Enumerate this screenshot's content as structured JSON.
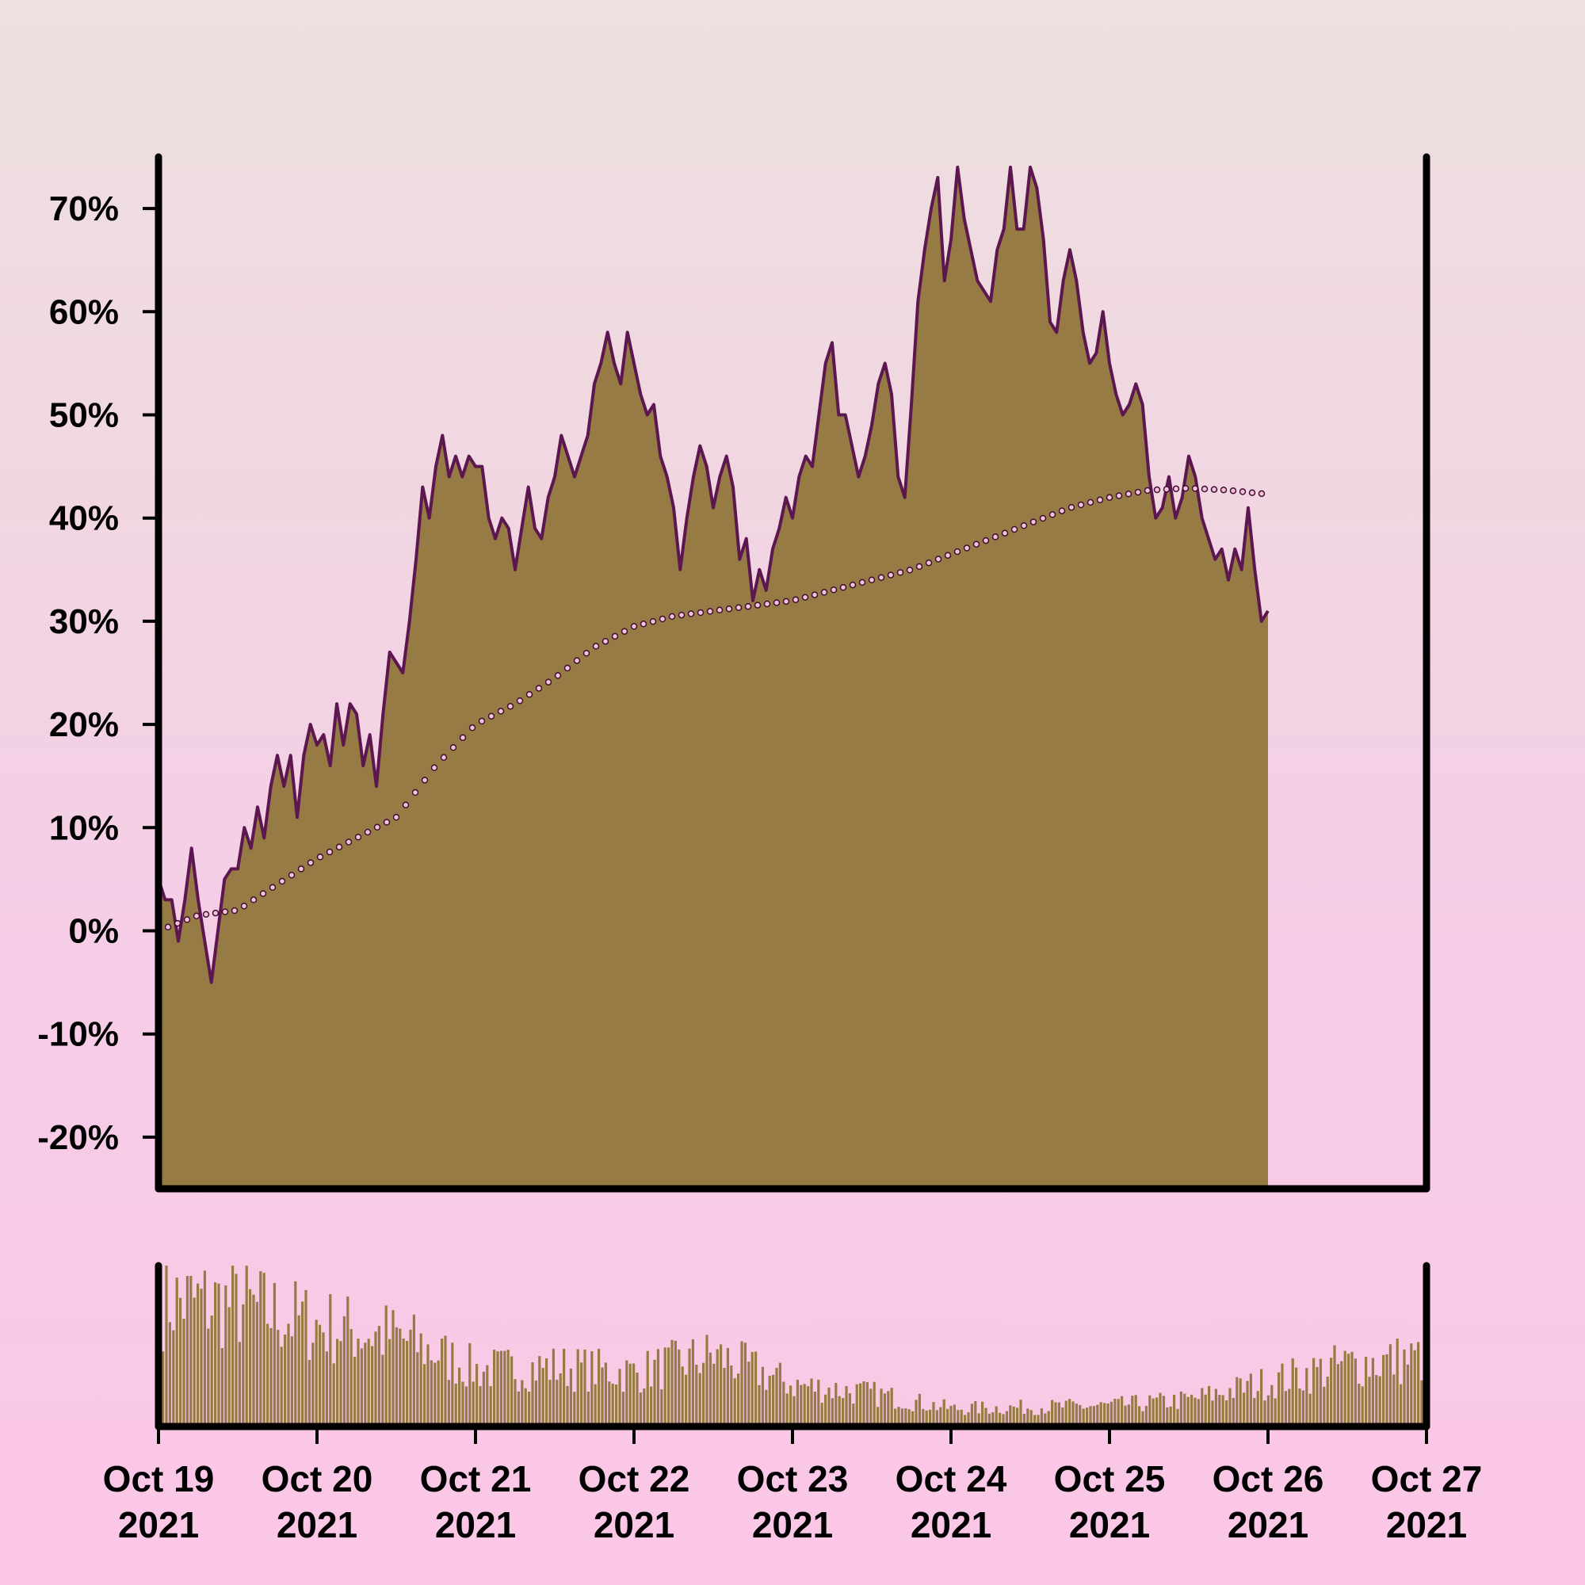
{
  "colors": {
    "area_fill": "#977b44",
    "line": "#5c1650",
    "marker_fill": "#f9c0dc",
    "marker_stroke": "#3a0f30",
    "axis": "#000000"
  },
  "chart_data": [
    {
      "type": "area",
      "title": "",
      "xlabel": "",
      "ylabel": "",
      "x_start": "2021-10-19",
      "x_end": "2021-10-27",
      "ylim": [
        -25,
        75
      ],
      "y_ticks": [
        -20,
        -10,
        0,
        10,
        20,
        30,
        40,
        50,
        60,
        70
      ],
      "y_tick_labels": [
        "-20%",
        "-10%",
        "0%",
        "10%",
        "20%",
        "30%",
        "40%",
        "50%",
        "60%",
        "70%"
      ],
      "x_tick_labels": [
        {
          "month_day": "Oct 19",
          "year": "2021"
        },
        {
          "month_day": "Oct 20",
          "year": "2021"
        },
        {
          "month_day": "Oct 21",
          "year": "2021"
        },
        {
          "month_day": "Oct 22",
          "year": "2021"
        },
        {
          "month_day": "Oct 23",
          "year": "2021"
        },
        {
          "month_day": "Oct 24",
          "year": "2021"
        },
        {
          "month_day": "Oct 25",
          "year": "2021"
        },
        {
          "month_day": "Oct 26",
          "year": "2021"
        },
        {
          "month_day": "Oct 27",
          "year": "2021"
        }
      ],
      "series": [
        {
          "style": "filled area with line",
          "points": [
            [
              "2021-10-19 00:00",
              5
            ],
            [
              "2021-10-19 01:00",
              3
            ],
            [
              "2021-10-19 02:00",
              3
            ],
            [
              "2021-10-19 03:00",
              -1
            ],
            [
              "2021-10-19 04:00",
              3
            ],
            [
              "2021-10-19 05:00",
              8
            ],
            [
              "2021-10-19 06:00",
              3
            ],
            [
              "2021-10-19 07:00",
              -1
            ],
            [
              "2021-10-19 08:00",
              -5
            ],
            [
              "2021-10-19 09:00",
              0
            ],
            [
              "2021-10-19 10:00",
              5
            ],
            [
              "2021-10-19 11:00",
              6
            ],
            [
              "2021-10-19 12:00",
              6
            ],
            [
              "2021-10-19 13:00",
              10
            ],
            [
              "2021-10-19 14:00",
              8
            ],
            [
              "2021-10-19 15:00",
              12
            ],
            [
              "2021-10-19 16:00",
              9
            ],
            [
              "2021-10-19 17:00",
              14
            ],
            [
              "2021-10-19 18:00",
              17
            ],
            [
              "2021-10-19 19:00",
              14
            ],
            [
              "2021-10-19 20:00",
              17
            ],
            [
              "2021-10-19 21:00",
              11
            ],
            [
              "2021-10-19 22:00",
              17
            ],
            [
              "2021-10-19 23:00",
              20
            ],
            [
              "2021-10-20 00:00",
              18
            ],
            [
              "2021-10-20 01:00",
              19
            ],
            [
              "2021-10-20 02:00",
              16
            ],
            [
              "2021-10-20 03:00",
              22
            ],
            [
              "2021-10-20 04:00",
              18
            ],
            [
              "2021-10-20 05:00",
              22
            ],
            [
              "2021-10-20 06:00",
              21
            ],
            [
              "2021-10-20 07:00",
              16
            ],
            [
              "2021-10-20 08:00",
              19
            ],
            [
              "2021-10-20 09:00",
              14
            ],
            [
              "2021-10-20 10:00",
              21
            ],
            [
              "2021-10-20 11:00",
              27
            ],
            [
              "2021-10-20 12:00",
              26
            ],
            [
              "2021-10-20 13:00",
              25
            ],
            [
              "2021-10-20 14:00",
              30
            ],
            [
              "2021-10-20 15:00",
              36
            ],
            [
              "2021-10-20 16:00",
              43
            ],
            [
              "2021-10-20 17:00",
              40
            ],
            [
              "2021-10-20 18:00",
              45
            ],
            [
              "2021-10-20 19:00",
              48
            ],
            [
              "2021-10-20 20:00",
              44
            ],
            [
              "2021-10-20 21:00",
              46
            ],
            [
              "2021-10-20 22:00",
              44
            ],
            [
              "2021-10-20 23:00",
              46
            ],
            [
              "2021-10-21 00:00",
              45
            ],
            [
              "2021-10-21 01:00",
              45
            ],
            [
              "2021-10-21 02:00",
              40
            ],
            [
              "2021-10-21 03:00",
              38
            ],
            [
              "2021-10-21 04:00",
              40
            ],
            [
              "2021-10-21 05:00",
              39
            ],
            [
              "2021-10-21 06:00",
              35
            ],
            [
              "2021-10-21 07:00",
              39
            ],
            [
              "2021-10-21 08:00",
              43
            ],
            [
              "2021-10-21 09:00",
              39
            ],
            [
              "2021-10-21 10:00",
              38
            ],
            [
              "2021-10-21 11:00",
              42
            ],
            [
              "2021-10-21 12:00",
              44
            ],
            [
              "2021-10-21 13:00",
              48
            ],
            [
              "2021-10-21 14:00",
              46
            ],
            [
              "2021-10-21 15:00",
              44
            ],
            [
              "2021-10-21 16:00",
              46
            ],
            [
              "2021-10-21 17:00",
              48
            ],
            [
              "2021-10-21 18:00",
              53
            ],
            [
              "2021-10-21 19:00",
              55
            ],
            [
              "2021-10-21 20:00",
              58
            ],
            [
              "2021-10-21 21:00",
              55
            ],
            [
              "2021-10-21 22:00",
              53
            ],
            [
              "2021-10-21 23:00",
              58
            ],
            [
              "2021-10-22 00:00",
              55
            ],
            [
              "2021-10-22 01:00",
              52
            ],
            [
              "2021-10-22 02:00",
              50
            ],
            [
              "2021-10-22 03:00",
              51
            ],
            [
              "2021-10-22 04:00",
              46
            ],
            [
              "2021-10-22 05:00",
              44
            ],
            [
              "2021-10-22 06:00",
              41
            ],
            [
              "2021-10-22 07:00",
              35
            ],
            [
              "2021-10-22 08:00",
              40
            ],
            [
              "2021-10-22 09:00",
              44
            ],
            [
              "2021-10-22 10:00",
              47
            ],
            [
              "2021-10-22 11:00",
              45
            ],
            [
              "2021-10-22 12:00",
              41
            ],
            [
              "2021-10-22 13:00",
              44
            ],
            [
              "2021-10-22 14:00",
              46
            ],
            [
              "2021-10-22 15:00",
              43
            ],
            [
              "2021-10-22 16:00",
              36
            ],
            [
              "2021-10-22 17:00",
              38
            ],
            [
              "2021-10-22 18:00",
              32
            ],
            [
              "2021-10-22 19:00",
              35
            ],
            [
              "2021-10-22 20:00",
              33
            ],
            [
              "2021-10-22 21:00",
              37
            ],
            [
              "2021-10-22 22:00",
              39
            ],
            [
              "2021-10-22 23:00",
              42
            ],
            [
              "2021-10-23 00:00",
              40
            ],
            [
              "2021-10-23 01:00",
              44
            ],
            [
              "2021-10-23 02:00",
              46
            ],
            [
              "2021-10-23 03:00",
              45
            ],
            [
              "2021-10-23 04:00",
              50
            ],
            [
              "2021-10-23 05:00",
              55
            ],
            [
              "2021-10-23 06:00",
              57
            ],
            [
              "2021-10-23 07:00",
              50
            ],
            [
              "2021-10-23 08:00",
              50
            ],
            [
              "2021-10-23 09:00",
              47
            ],
            [
              "2021-10-23 10:00",
              44
            ],
            [
              "2021-10-23 11:00",
              46
            ],
            [
              "2021-10-23 12:00",
              49
            ],
            [
              "2021-10-23 13:00",
              53
            ],
            [
              "2021-10-23 14:00",
              55
            ],
            [
              "2021-10-23 15:00",
              52
            ],
            [
              "2021-10-23 16:00",
              44
            ],
            [
              "2021-10-23 17:00",
              42
            ],
            [
              "2021-10-23 18:00",
              51
            ],
            [
              "2021-10-23 19:00",
              61
            ],
            [
              "2021-10-23 20:00",
              66
            ],
            [
              "2021-10-23 21:00",
              70
            ],
            [
              "2021-10-23 22:00",
              73
            ],
            [
              "2021-10-23 23:00",
              63
            ],
            [
              "2021-10-24 00:00",
              67
            ],
            [
              "2021-10-24 01:00",
              74
            ],
            [
              "2021-10-24 02:00",
              69
            ],
            [
              "2021-10-24 03:00",
              66
            ],
            [
              "2021-10-24 04:00",
              63
            ],
            [
              "2021-10-24 05:00",
              62
            ],
            [
              "2021-10-24 06:00",
              61
            ],
            [
              "2021-10-24 07:00",
              66
            ],
            [
              "2021-10-24 08:00",
              68
            ],
            [
              "2021-10-24 09:00",
              74
            ],
            [
              "2021-10-24 10:00",
              68
            ],
            [
              "2021-10-24 11:00",
              68
            ],
            [
              "2021-10-24 12:00",
              74
            ],
            [
              "2021-10-24 13:00",
              72
            ],
            [
              "2021-10-24 14:00",
              67
            ],
            [
              "2021-10-24 15:00",
              59
            ],
            [
              "2021-10-24 16:00",
              58
            ],
            [
              "2021-10-24 17:00",
              63
            ],
            [
              "2021-10-24 18:00",
              66
            ],
            [
              "2021-10-24 19:00",
              63
            ],
            [
              "2021-10-24 20:00",
              58
            ],
            [
              "2021-10-24 21:00",
              55
            ],
            [
              "2021-10-24 22:00",
              56
            ],
            [
              "2021-10-24 23:00",
              60
            ],
            [
              "2021-10-25 00:00",
              55
            ],
            [
              "2021-10-25 01:00",
              52
            ],
            [
              "2021-10-25 02:00",
              50
            ],
            [
              "2021-10-25 03:00",
              51
            ],
            [
              "2021-10-25 04:00",
              53
            ],
            [
              "2021-10-25 05:00",
              51
            ],
            [
              "2021-10-25 06:00",
              44
            ],
            [
              "2021-10-25 07:00",
              40
            ],
            [
              "2021-10-25 08:00",
              41
            ],
            [
              "2021-10-25 09:00",
              44
            ],
            [
              "2021-10-25 10:00",
              40
            ],
            [
              "2021-10-25 11:00",
              42
            ],
            [
              "2021-10-25 12:00",
              46
            ],
            [
              "2021-10-25 13:00",
              44
            ],
            [
              "2021-10-25 14:00",
              40
            ],
            [
              "2021-10-25 15:00",
              38
            ],
            [
              "2021-10-25 16:00",
              36
            ],
            [
              "2021-10-25 17:00",
              37
            ],
            [
              "2021-10-25 18:00",
              34
            ],
            [
              "2021-10-25 19:00",
              37
            ],
            [
              "2021-10-25 20:00",
              35
            ],
            [
              "2021-10-25 21:00",
              41
            ],
            [
              "2021-10-25 22:00",
              35
            ],
            [
              "2021-10-25 23:00",
              30
            ],
            [
              "2021-10-26 00:00",
              31
            ]
          ]
        },
        {
          "style": "dotted moving-average line",
          "points": [
            [
              "2021-10-19 00:00",
              0
            ],
            [
              "2021-10-19 06:00",
              1.5
            ],
            [
              "2021-10-19 12:00",
              2
            ],
            [
              "2021-10-19 18:00",
              4.5
            ],
            [
              "2021-10-20 00:00",
              7
            ],
            [
              "2021-10-20 06:00",
              9
            ],
            [
              "2021-10-20 12:00",
              11
            ],
            [
              "2021-10-20 18:00",
              16
            ],
            [
              "2021-10-21 00:00",
              20
            ],
            [
              "2021-10-21 06:00",
              22
            ],
            [
              "2021-10-21 12:00",
              24.5
            ],
            [
              "2021-10-21 18:00",
              27.5
            ],
            [
              "2021-10-22 00:00",
              29.5
            ],
            [
              "2021-10-22 06:00",
              30.5
            ],
            [
              "2021-10-22 12:00",
              31
            ],
            [
              "2021-10-22 18:00",
              31.5
            ],
            [
              "2021-10-23 00:00",
              32
            ],
            [
              "2021-10-23 06:00",
              33
            ],
            [
              "2021-10-23 12:00",
              34
            ],
            [
              "2021-10-23 18:00",
              35
            ],
            [
              "2021-10-24 00:00",
              36.5
            ],
            [
              "2021-10-24 06:00",
              38
            ],
            [
              "2021-10-24 12:00",
              39.5
            ],
            [
              "2021-10-24 18:00",
              41
            ],
            [
              "2021-10-25 00:00",
              42
            ],
            [
              "2021-10-25 06:00",
              42.7
            ],
            [
              "2021-10-25 12:00",
              42.9
            ],
            [
              "2021-10-25 18:00",
              42.7
            ],
            [
              "2021-10-26 00:00",
              42.3
            ]
          ]
        }
      ]
    },
    {
      "type": "bar",
      "title": "",
      "xlabel": "",
      "ylabel": "",
      "description": "volume sub-panel; bar heights relative (0-1)",
      "envelope": [
        [
          "2021-10-19 00:00",
          0.85
        ],
        [
          "2021-10-19 12:00",
          0.82
        ],
        [
          "2021-10-20 00:00",
          0.68
        ],
        [
          "2021-10-20 12:00",
          0.6
        ],
        [
          "2021-10-21 00:00",
          0.38
        ],
        [
          "2021-10-21 12:00",
          0.4
        ],
        [
          "2021-10-22 00:00",
          0.36
        ],
        [
          "2021-10-22 12:00",
          0.48
        ],
        [
          "2021-10-23 00:00",
          0.28
        ],
        [
          "2021-10-23 12:00",
          0.22
        ],
        [
          "2021-10-24 00:00",
          0.12
        ],
        [
          "2021-10-24 12:00",
          0.13
        ],
        [
          "2021-10-25 00:00",
          0.14
        ],
        [
          "2021-10-25 12:00",
          0.18
        ],
        [
          "2021-10-26 00:00",
          0.3
        ],
        [
          "2021-10-26 12:00",
          0.42
        ],
        [
          "2021-10-27 00:00",
          0.46
        ]
      ]
    }
  ]
}
